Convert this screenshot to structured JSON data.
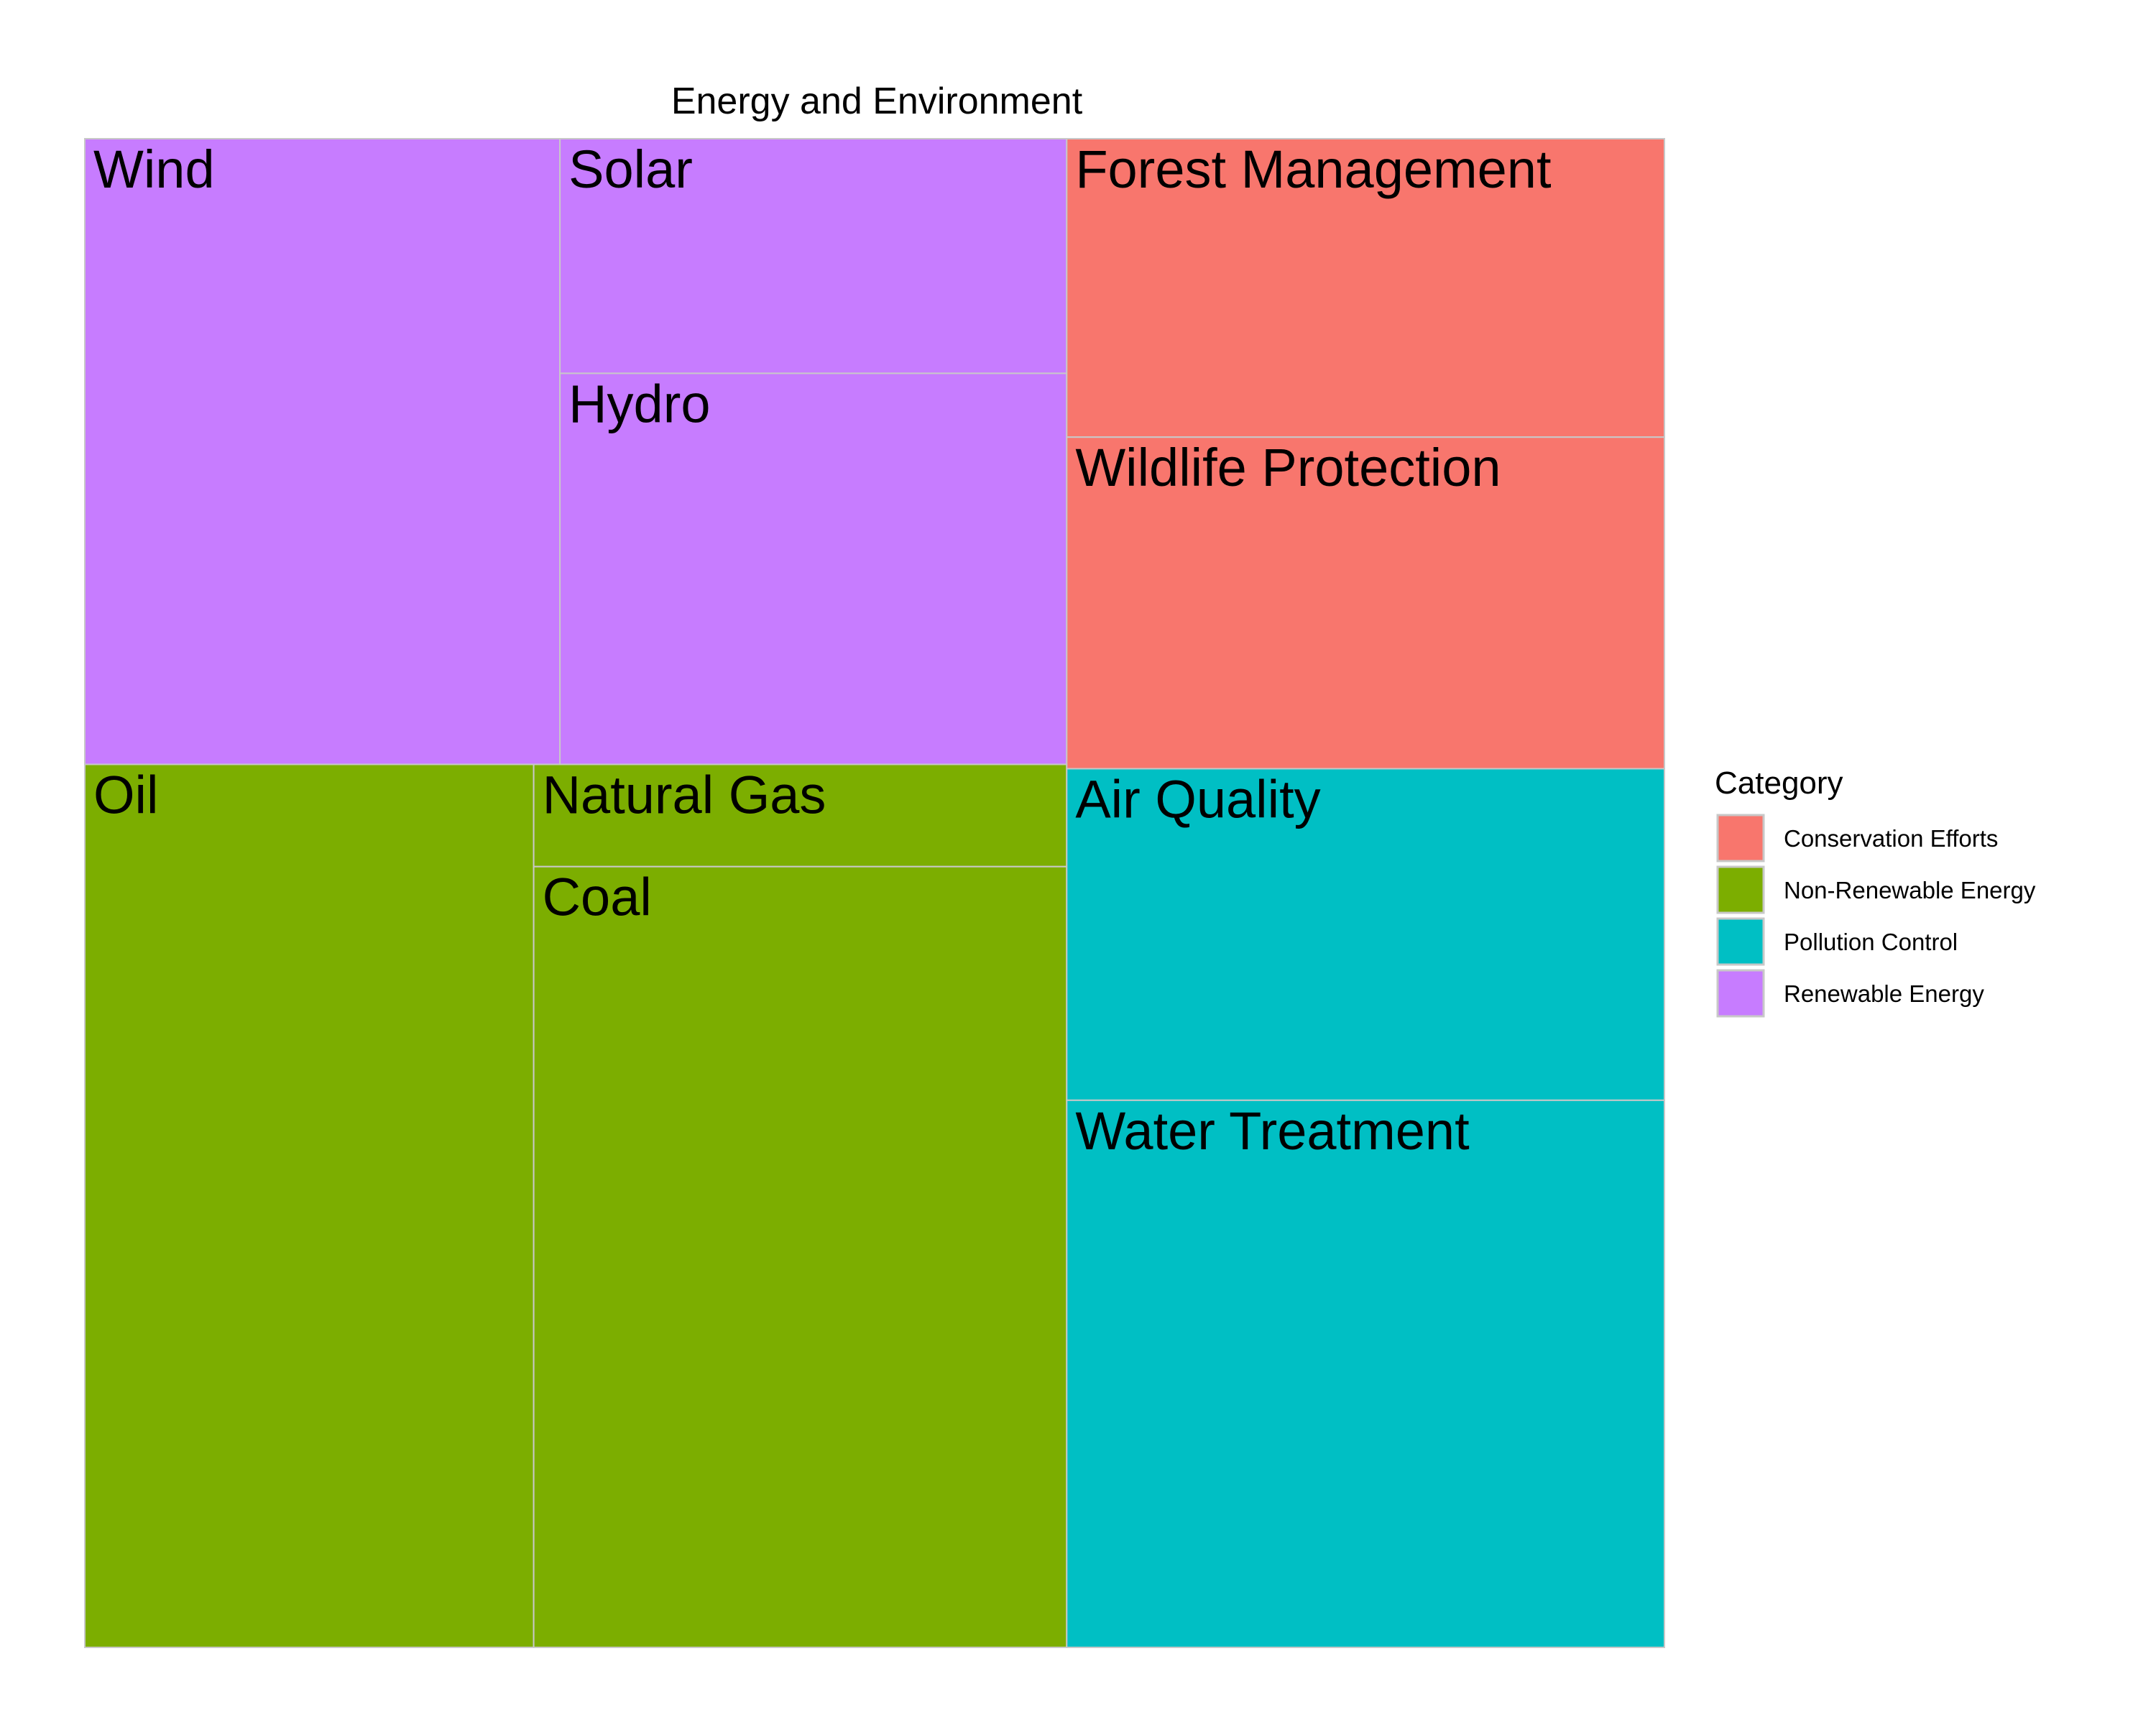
{
  "chart_data": {
    "type": "treemap",
    "title": "Energy and Environment",
    "legend": {
      "title": "Category",
      "placement": "right",
      "entries": [
        {
          "name": "Conservation Efforts",
          "color": "#F8766D"
        },
        {
          "name": "Non-Renewable Energy",
          "color": "#7CAE00"
        },
        {
          "name": "Pollution Control",
          "color": "#00BFC4"
        },
        {
          "name": "Renewable Energy",
          "color": "#C77CFF"
        }
      ]
    },
    "groups": [
      {
        "name": "Renewable Energy",
        "items": [
          {
            "label": "Wind",
            "value": 30
          },
          {
            "label": "Solar",
            "value": 12
          },
          {
            "label": "Hydro",
            "value": 20
          }
        ]
      },
      {
        "name": "Non-Renewable Energy",
        "items": [
          {
            "label": "Oil",
            "value": 40
          },
          {
            "label": "Natural Gas",
            "value": 5.5
          },
          {
            "label": "Coal",
            "value": 42
          }
        ]
      },
      {
        "name": "Conservation Efforts",
        "items": [
          {
            "label": "Forest Management",
            "value": 18
          },
          {
            "label": "Wildlife Protection",
            "value": 20
          }
        ]
      },
      {
        "name": "Pollution Control",
        "items": [
          {
            "label": "Air Quality",
            "value": 20
          },
          {
            "label": "Water Treatment",
            "value": 33
          }
        ]
      }
    ]
  }
}
